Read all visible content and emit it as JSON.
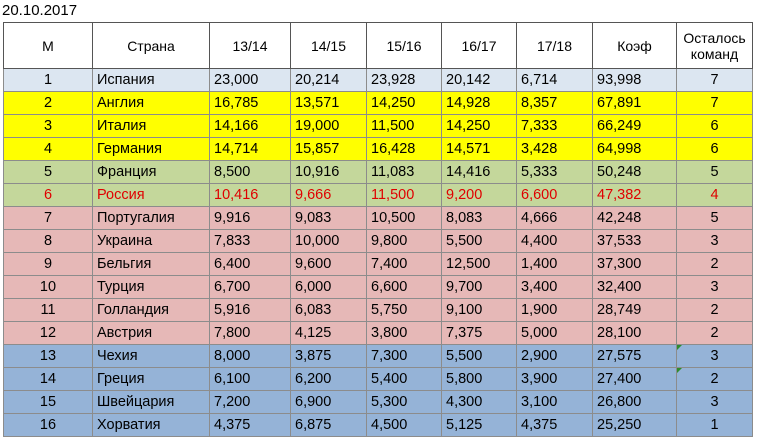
{
  "date": "20.10.2017",
  "headers": [
    "М",
    "Страна",
    "13/14",
    "14/15",
    "15/16",
    "16/17",
    "17/18",
    "Коэф",
    "Осталось команд"
  ],
  "rows": [
    {
      "m": "1",
      "country": "Испания",
      "s1314": "23,000",
      "s1415": "20,214",
      "s1516": "23,928",
      "s1617": "20,142",
      "s1718": "6,714",
      "coef": "93,998",
      "remaining": "7",
      "group": "first"
    },
    {
      "m": "2",
      "country": "Англия",
      "s1314": "16,785",
      "s1415": "13,571",
      "s1516": "14,250",
      "s1617": "14,928",
      "s1718": "8,357",
      "coef": "67,891",
      "remaining": "7",
      "group": "yellow"
    },
    {
      "m": "3",
      "country": "Италия",
      "s1314": "14,166",
      "s1415": "19,000",
      "s1516": "11,500",
      "s1617": "14,250",
      "s1718": "7,333",
      "coef": "66,249",
      "remaining": "6",
      "group": "yellow"
    },
    {
      "m": "4",
      "country": "Германия",
      "s1314": "14,714",
      "s1415": "15,857",
      "s1516": "16,428",
      "s1617": "14,571",
      "s1718": "3,428",
      "coef": "64,998",
      "remaining": "6",
      "group": "yellow"
    },
    {
      "m": "5",
      "country": "Франция",
      "s1314": "8,500",
      "s1415": "10,916",
      "s1516": "11,083",
      "s1617": "14,416",
      "s1718": "5,333",
      "coef": "50,248",
      "remaining": "5",
      "group": "green"
    },
    {
      "m": "6",
      "country": "Россия",
      "s1314": "10,416",
      "s1415": "9,666",
      "s1516": "11,500",
      "s1617": "9,200",
      "s1718": "6,600",
      "coef": "47,382",
      "remaining": "4",
      "group": "green",
      "highlight": true
    },
    {
      "m": "7",
      "country": "Португалия",
      "s1314": "9,916",
      "s1415": "9,083",
      "s1516": "10,500",
      "s1617": "8,083",
      "s1718": "4,666",
      "coef": "42,248",
      "remaining": "5",
      "group": "pink"
    },
    {
      "m": "8",
      "country": "Украина",
      "s1314": "7,833",
      "s1415": "10,000",
      "s1516": "9,800",
      "s1617": "5,500",
      "s1718": "4,400",
      "coef": "37,533",
      "remaining": "3",
      "group": "pink"
    },
    {
      "m": "9",
      "country": "Бельгия",
      "s1314": "6,400",
      "s1415": "9,600",
      "s1516": "7,400",
      "s1617": "12,500",
      "s1718": "1,400",
      "coef": "37,300",
      "remaining": "2",
      "group": "pink"
    },
    {
      "m": "10",
      "country": "Турция",
      "s1314": "6,700",
      "s1415": "6,000",
      "s1516": "6,600",
      "s1617": "9,700",
      "s1718": "3,400",
      "coef": "32,400",
      "remaining": "3",
      "group": "pink"
    },
    {
      "m": "11",
      "country": "Голландия",
      "s1314": "5,916",
      "s1415": "6,083",
      "s1516": "5,750",
      "s1617": "9,100",
      "s1718": "1,900",
      "coef": "28,749",
      "remaining": "2",
      "group": "pink"
    },
    {
      "m": "12",
      "country": "Австрия",
      "s1314": "7,800",
      "s1415": "4,125",
      "s1516": "3,800",
      "s1617": "7,375",
      "s1718": "5,000",
      "coef": "28,100",
      "remaining": "2",
      "group": "pink"
    },
    {
      "m": "13",
      "country": "Чехия",
      "s1314": "8,000",
      "s1415": "3,875",
      "s1516": "7,300",
      "s1617": "5,500",
      "s1718": "2,900",
      "coef": "27,575",
      "remaining": "3",
      "group": "blue",
      "marker": true
    },
    {
      "m": "14",
      "country": "Греция",
      "s1314": "6,100",
      "s1415": "6,200",
      "s1516": "5,400",
      "s1617": "5,800",
      "s1718": "3,900",
      "coef": "27,400",
      "remaining": "2",
      "group": "blue",
      "marker": true
    },
    {
      "m": "15",
      "country": "Швейцария",
      "s1314": "7,200",
      "s1415": "6,900",
      "s1516": "5,300",
      "s1617": "4,300",
      "s1718": "3,100",
      "coef": "26,800",
      "remaining": "3",
      "group": "blue"
    },
    {
      "m": "16",
      "country": "Хорватия",
      "s1314": "4,375",
      "s1415": "6,875",
      "s1516": "4,500",
      "s1617": "5,125",
      "s1718": "4,375",
      "coef": "25,250",
      "remaining": "1",
      "group": "blue"
    }
  ]
}
